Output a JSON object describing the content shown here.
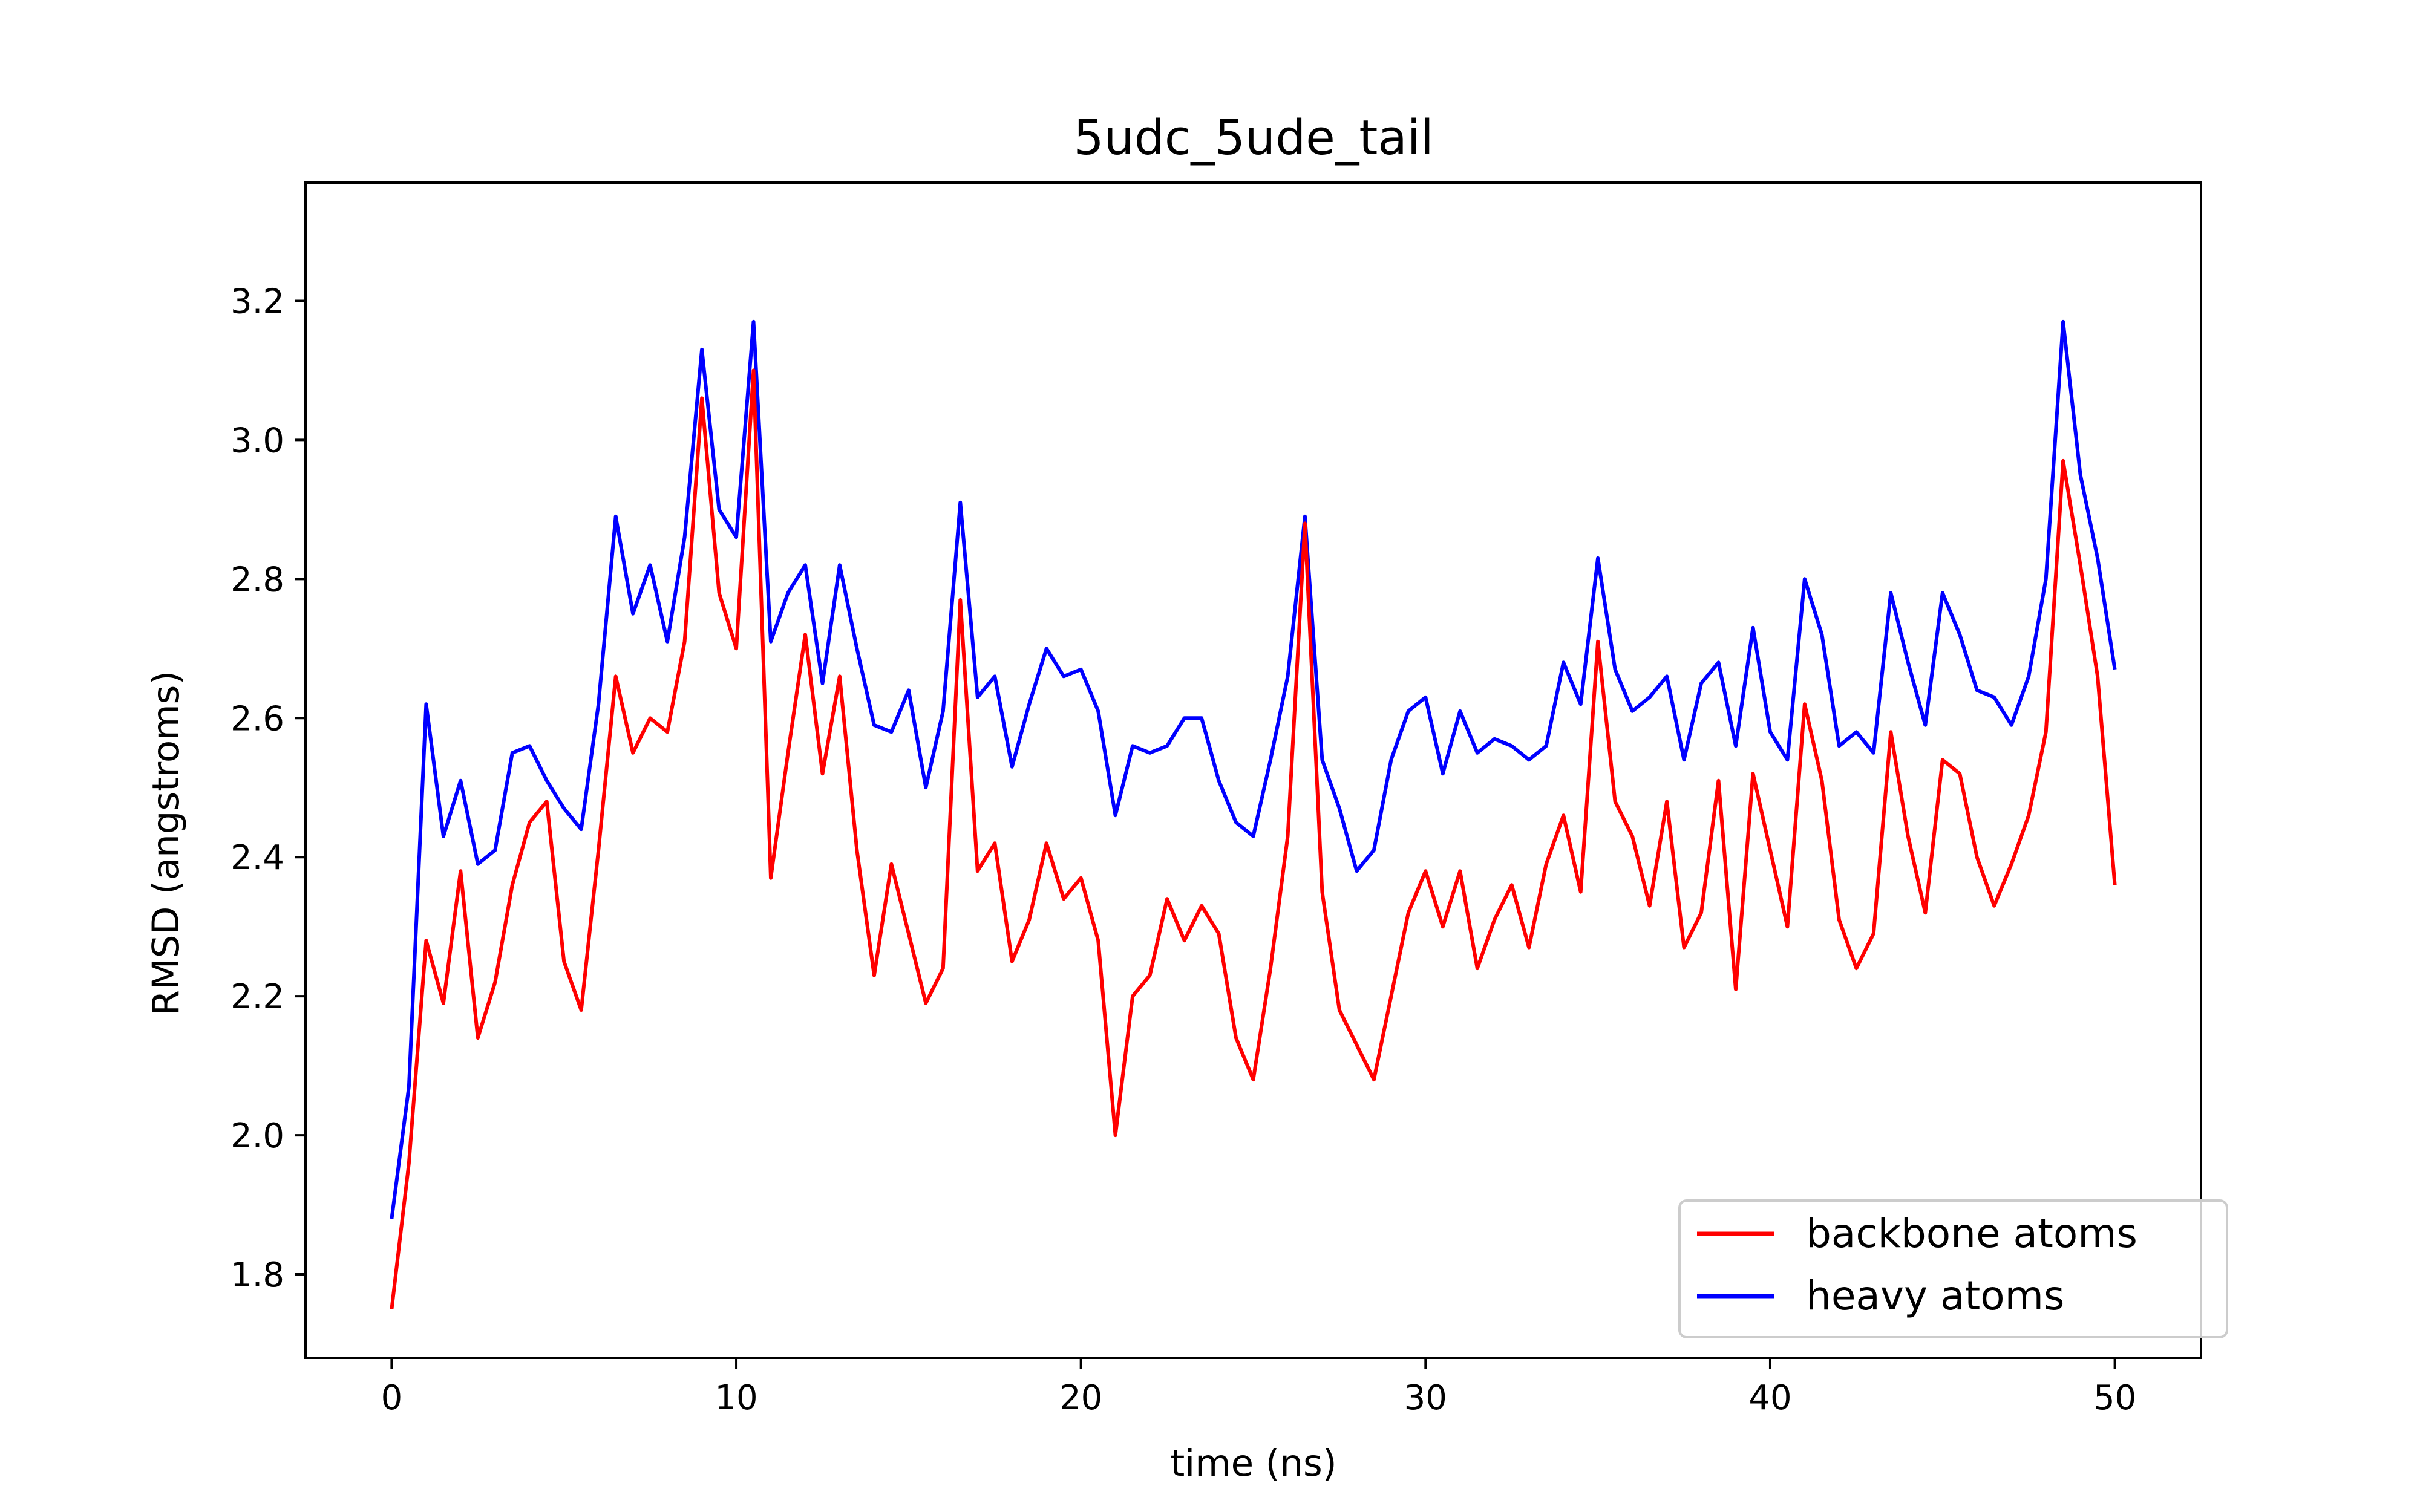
{
  "chart_data": {
    "type": "line",
    "title": "5udc_5ude_tail",
    "xlabel": "time (ns)",
    "ylabel": "RMSD (angstroms)",
    "xlim": [
      -2.5,
      52.5
    ],
    "ylim": [
      1.68,
      3.37
    ],
    "x_ticks": [
      0,
      10,
      20,
      30,
      40,
      50
    ],
    "y_ticks": [
      1.8,
      2.0,
      2.2,
      2.4,
      2.6,
      2.8,
      3.0,
      3.2
    ],
    "x_tick_labels": [
      "0",
      "10",
      "20",
      "30",
      "40",
      "50"
    ],
    "y_tick_labels": [
      "1.8",
      "2.0",
      "2.2",
      "2.4",
      "2.6",
      "2.8",
      "3.0",
      "3.2"
    ],
    "grid": false,
    "legend_position": "bottom-right",
    "x": [
      0,
      0.5,
      1,
      1.5,
      2,
      2.5,
      3,
      3.5,
      4,
      4.5,
      5,
      5.5,
      6,
      6.5,
      7,
      7.5,
      8,
      8.5,
      9,
      9.5,
      10,
      10.5,
      11,
      11.5,
      12,
      12.5,
      13,
      13.5,
      14,
      14.5,
      15,
      15.5,
      16,
      16.5,
      17,
      17.5,
      18,
      18.5,
      19,
      19.5,
      20,
      20.5,
      21,
      21.5,
      22,
      22.5,
      23,
      23.5,
      24,
      24.5,
      25,
      25.5,
      26,
      26.5,
      27,
      27.5,
      28,
      28.5,
      29,
      29.5,
      30,
      30.5,
      31,
      31.5,
      32,
      32.5,
      33,
      33.5,
      34,
      34.5,
      35,
      35.5,
      36,
      36.5,
      37,
      37.5,
      38,
      38.5,
      39,
      39.5,
      40,
      40.5,
      41,
      41.5,
      42,
      42.5,
      43,
      43.5,
      44,
      44.5,
      45,
      45.5,
      46,
      46.5,
      47,
      47.5,
      48,
      48.5,
      49,
      49.5,
      50
    ],
    "series": [
      {
        "name": "backbone atoms",
        "color": "#ff0000",
        "values": [
          1.75,
          1.96,
          2.28,
          2.19,
          2.38,
          2.14,
          2.22,
          2.36,
          2.45,
          2.48,
          2.25,
          2.18,
          2.41,
          2.66,
          2.55,
          2.6,
          2.58,
          2.71,
          3.06,
          2.78,
          2.7,
          3.1,
          2.37,
          2.55,
          2.72,
          2.52,
          2.66,
          2.41,
          2.23,
          2.39,
          2.29,
          2.19,
          2.24,
          2.77,
          2.38,
          2.42,
          2.25,
          2.31,
          2.42,
          2.34,
          2.37,
          2.28,
          2.0,
          2.2,
          2.23,
          2.34,
          2.28,
          2.33,
          2.29,
          2.14,
          2.08,
          2.24,
          2.43,
          2.88,
          2.35,
          2.18,
          2.13,
          2.08,
          2.2,
          2.32,
          2.38,
          2.3,
          2.38,
          2.24,
          2.31,
          2.36,
          2.27,
          2.39,
          2.46,
          2.35,
          2.71,
          2.48,
          2.43,
          2.33,
          2.48,
          2.27,
          2.32,
          2.51,
          2.21,
          2.52,
          2.41,
          2.3,
          2.62,
          2.51,
          2.31,
          2.24,
          2.29,
          2.58,
          2.43,
          2.32,
          2.54,
          2.52,
          2.4,
          2.33,
          2.39,
          2.46,
          2.58,
          2.97,
          2.82,
          2.66,
          2.36
        ]
      },
      {
        "name": "heavy atoms",
        "color": "#0000ff",
        "values": [
          1.88,
          2.07,
          2.62,
          2.43,
          2.51,
          2.39,
          2.41,
          2.55,
          2.56,
          2.51,
          2.47,
          2.44,
          2.62,
          2.89,
          2.75,
          2.82,
          2.71,
          2.86,
          3.13,
          2.9,
          2.86,
          3.17,
          2.71,
          2.78,
          2.82,
          2.65,
          2.82,
          2.7,
          2.59,
          2.58,
          2.64,
          2.5,
          2.61,
          2.91,
          2.63,
          2.66,
          2.53,
          2.62,
          2.7,
          2.66,
          2.67,
          2.61,
          2.46,
          2.56,
          2.55,
          2.56,
          2.6,
          2.6,
          2.51,
          2.45,
          2.43,
          2.54,
          2.66,
          2.89,
          2.54,
          2.47,
          2.38,
          2.41,
          2.54,
          2.61,
          2.63,
          2.52,
          2.61,
          2.55,
          2.57,
          2.56,
          2.54,
          2.56,
          2.68,
          2.62,
          2.83,
          2.67,
          2.61,
          2.63,
          2.66,
          2.54,
          2.65,
          2.68,
          2.56,
          2.73,
          2.58,
          2.54,
          2.8,
          2.72,
          2.56,
          2.58,
          2.55,
          2.78,
          2.68,
          2.59,
          2.78,
          2.72,
          2.64,
          2.63,
          2.59,
          2.66,
          2.8,
          3.17,
          2.95,
          2.83,
          2.67
        ]
      }
    ]
  }
}
